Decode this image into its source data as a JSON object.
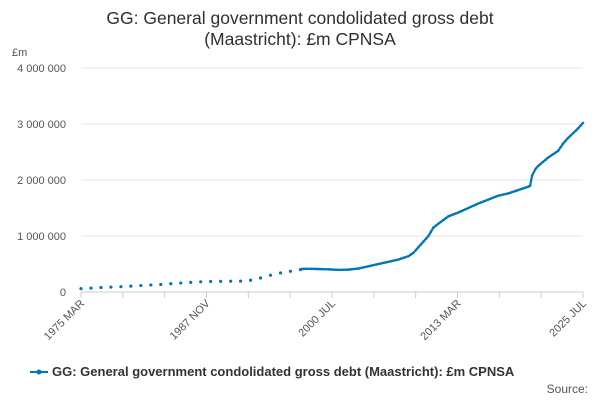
{
  "chart_data": {
    "type": "line",
    "title_lines": [
      "GG: General government condolidated gross debt",
      "(Maastricht): £m CPNSA"
    ],
    "ylabel": "£m",
    "xlabel": "",
    "ylim": [
      0,
      4000000
    ],
    "y_ticks": [
      0,
      1000000,
      2000000,
      3000000,
      4000000
    ],
    "y_tick_labels": [
      "0",
      "1 000 000",
      "2 000 000",
      "3 000 000",
      "4 000 000"
    ],
    "x_ticks": [
      "1975 MAR",
      "1987 NOV",
      "2000 JUL",
      "2013 MAR",
      "2025 JUL"
    ],
    "xlim": [
      1975.17,
      2025.5
    ],
    "grid": "horizontal",
    "legend_position": "bottom",
    "color": "#0077b5",
    "series": [
      {
        "name": "GG: General government condolidated gross debt (Maastricht): £m CPNSA",
        "annual": [
          [
            1975.17,
            60000
          ],
          [
            1976.17,
            70000
          ],
          [
            1977.17,
            80000
          ],
          [
            1978.17,
            88000
          ],
          [
            1979.17,
            95000
          ],
          [
            1980.17,
            105000
          ],
          [
            1981.17,
            115000
          ],
          [
            1982.17,
            125000
          ],
          [
            1983.17,
            135000
          ],
          [
            1984.17,
            148000
          ],
          [
            1985.17,
            160000
          ],
          [
            1986.17,
            172000
          ],
          [
            1987.17,
            182000
          ],
          [
            1988.17,
            188000
          ],
          [
            1989.17,
            190000
          ],
          [
            1990.17,
            192000
          ],
          [
            1991.17,
            195000
          ],
          [
            1992.17,
            210000
          ],
          [
            1993.17,
            250000
          ],
          [
            1994.17,
            300000
          ],
          [
            1995.17,
            340000
          ],
          [
            1996.17,
            370000
          ],
          [
            1997.17,
            400000
          ]
        ],
        "quarterly_keypoints": [
          [
            1997.25,
            410000
          ],
          [
            1998.0,
            415000
          ],
          [
            1999.0,
            410000
          ],
          [
            2000.0,
            405000
          ],
          [
            2001.0,
            395000
          ],
          [
            2002.0,
            400000
          ],
          [
            2003.0,
            420000
          ],
          [
            2004.0,
            460000
          ],
          [
            2005.0,
            500000
          ],
          [
            2006.0,
            540000
          ],
          [
            2007.0,
            580000
          ],
          [
            2008.0,
            640000
          ],
          [
            2008.5,
            700000
          ],
          [
            2009.0,
            800000
          ],
          [
            2009.5,
            900000
          ],
          [
            2010.0,
            1000000
          ],
          [
            2010.5,
            1150000
          ],
          [
            2011.0,
            1220000
          ],
          [
            2012.0,
            1350000
          ],
          [
            2013.0,
            1420000
          ],
          [
            2014.0,
            1500000
          ],
          [
            2015.0,
            1580000
          ],
          [
            2016.0,
            1650000
          ],
          [
            2017.0,
            1720000
          ],
          [
            2018.0,
            1760000
          ],
          [
            2019.0,
            1820000
          ],
          [
            2020.0,
            1880000
          ],
          [
            2020.2,
            1900000
          ],
          [
            2020.4,
            2080000
          ],
          [
            2020.75,
            2200000
          ],
          [
            2021.0,
            2250000
          ],
          [
            2022.0,
            2400000
          ],
          [
            2023.0,
            2520000
          ],
          [
            2023.5,
            2650000
          ],
          [
            2024.0,
            2750000
          ],
          [
            2025.0,
            2920000
          ],
          [
            2025.5,
            3020000
          ]
        ]
      }
    ]
  },
  "source_label": "Source:"
}
